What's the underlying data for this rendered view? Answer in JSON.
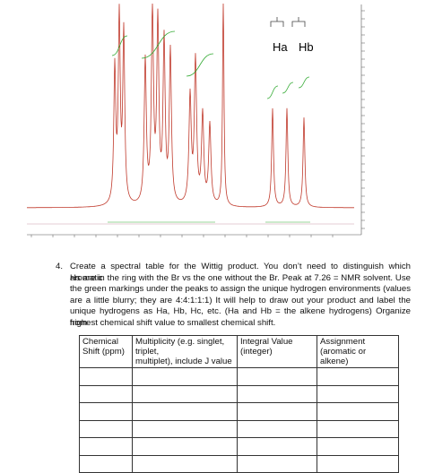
{
  "spectrum": {
    "labels": [
      "Ha",
      "Hb"
    ]
  },
  "question": {
    "number": "4.",
    "lines": [
      "Create a spectral table for the Wittig product. You don’t need to distinguish which aromatic",
      "Hs are in the ring with the Br vs the one without the Br. Peak at 7.26 = NMR solvent. Use",
      "the green markings under the peaks to assign the unique hydrogen environments (values",
      "are a little blurry; they are 4:4:1:1:1) It will help to draw out your product and label the",
      "unique hydrogens as Ha, Hb, Hc, etc. (Ha and Hb = the alkene hydrogens) Organize from",
      "highest chemical shift value to smallest chemical shift."
    ]
  },
  "table": {
    "header": [
      [
        "Chemical",
        "Shift (ppm)"
      ],
      [
        "Multiplicity (e.g. singlet, triplet,",
        "multiplet), include J value"
      ],
      [
        "Integral Value",
        "(integer)"
      ],
      [
        "Assignment",
        "(aromatic or alkene)"
      ]
    ]
  }
}
